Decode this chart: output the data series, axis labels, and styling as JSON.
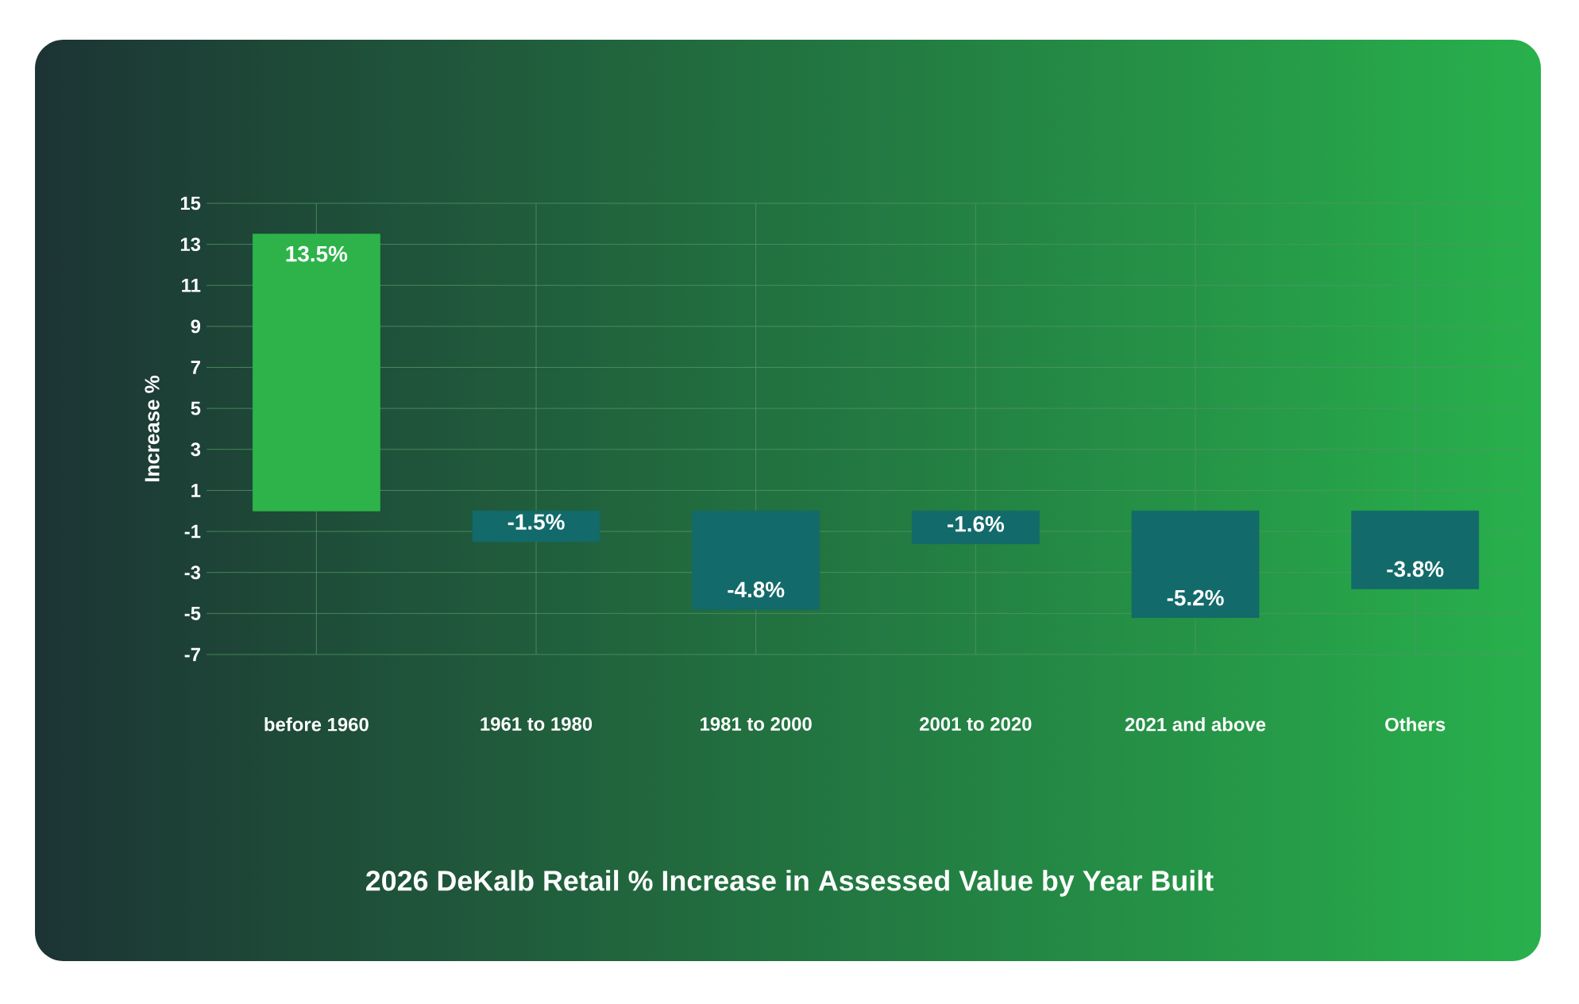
{
  "chart_data": {
    "type": "bar",
    "title": "2026 DeKalb Retail % Increase in Assessed Value by Year Built",
    "ylabel": "Increase %",
    "categories": [
      "before 1960",
      "1961 to 1980",
      "1981 to 2000",
      "2001 to 2020",
      "2021 and above",
      "Others"
    ],
    "values": [
      13.5,
      -1.5,
      -4.8,
      -1.6,
      -5.2,
      -3.8
    ],
    "value_labels": [
      "13.5%",
      "-1.5%",
      "-4.8%",
      "-1.6%",
      "-5.2%",
      "-3.8%"
    ],
    "colors": [
      "#2db34a",
      "#136a6a",
      "#136a6a",
      "#136a6a",
      "#136a6a",
      "#136a6a"
    ],
    "ylim": [
      -7,
      15
    ],
    "yticks": [
      -7,
      -5,
      -3,
      -1,
      1,
      3,
      5,
      7,
      9,
      11,
      13,
      15
    ],
    "grid": true
  }
}
